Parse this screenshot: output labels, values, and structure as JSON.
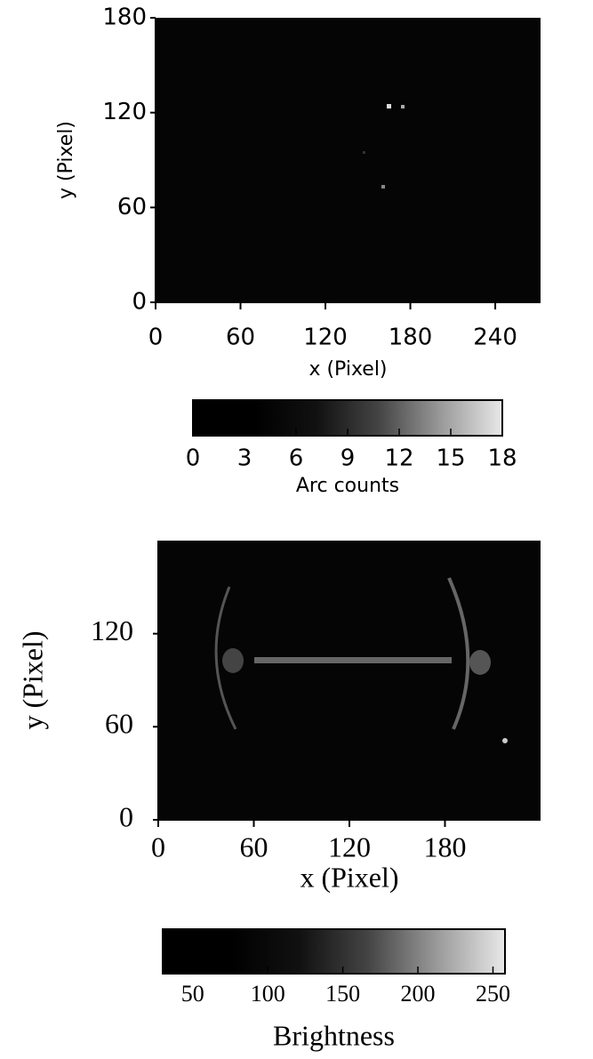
{
  "chart_data": [
    {
      "type": "heatmap",
      "xlabel": "x (Pixel)",
      "ylabel": "y (Pixel)",
      "xlim": [
        0,
        272
      ],
      "ylim": [
        0,
        180
      ],
      "xticks": [
        0,
        60,
        120,
        180,
        240
      ],
      "yticks": [
        0,
        60,
        120,
        180
      ],
      "colormap": "gray",
      "colorbar": {
        "label": "Arc counts",
        "lim": [
          0,
          18
        ],
        "ticks": [
          0,
          3,
          6,
          9,
          12,
          15,
          18
        ]
      }
    },
    {
      "type": "heatmap",
      "xlabel": "x (Pixel)",
      "ylabel": "y (Pixel)",
      "xlim": [
        0,
        240
      ],
      "ylim": [
        0,
        180
      ],
      "xticks": [
        0,
        60,
        120,
        180
      ],
      "yticks": [
        0,
        60,
        120
      ],
      "colormap": "gray",
      "colorbar": {
        "label": "Brightness",
        "lim": [
          30,
          258
        ],
        "ticks": [
          50,
          100,
          150,
          200,
          250
        ]
      }
    }
  ]
}
